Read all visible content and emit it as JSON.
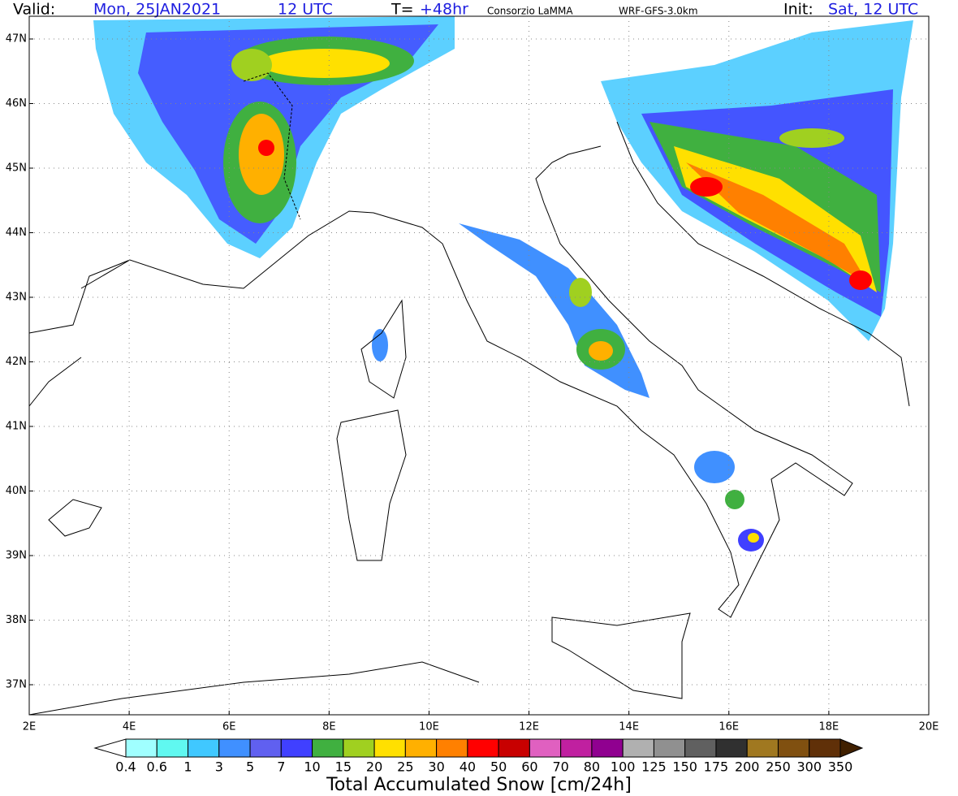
{
  "header": {
    "valid_label": "Valid:",
    "valid_date": "Mon, 25JAN2021",
    "valid_time": "12 UTC",
    "t_label": "T=",
    "t_value": "+48hr",
    "institution": "Consorzio LaMMA",
    "model": "WRF-GFS-3.0km",
    "init_label": "Init:",
    "init_value": "Sat, 12 UTC"
  },
  "map": {
    "lat_labels": [
      "47N",
      "46N",
      "45N",
      "44N",
      "43N",
      "42N",
      "41N",
      "40N",
      "39N",
      "38N",
      "37N"
    ],
    "lon_labels": [
      "2E",
      "4E",
      "6E",
      "8E",
      "10E",
      "12E",
      "14E",
      "16E",
      "18E",
      "20E"
    ]
  },
  "colorbar": {
    "title": "Total Accumulated Snow [cm/24h]",
    "labels": [
      "0.4",
      "0.6",
      "1",
      "3",
      "5",
      "7",
      "10",
      "15",
      "20",
      "25",
      "30",
      "40",
      "50",
      "60",
      "70",
      "80",
      "100",
      "125",
      "150",
      "175",
      "200",
      "250",
      "300",
      "350"
    ],
    "colors": [
      "#ffffff",
      "#a0ffff",
      "#60f8f0",
      "#40c8ff",
      "#4090ff",
      "#6060f0",
      "#4040ff",
      "#40b040",
      "#a0d020",
      "#ffe000",
      "#ffb000",
      "#ff8000",
      "#ff0000",
      "#c80000",
      "#e060c0",
      "#c020a0",
      "#900090",
      "#b0b0b0",
      "#909090",
      "#606060",
      "#303030",
      "#a07820",
      "#805010",
      "#603008",
      "#402000"
    ]
  }
}
